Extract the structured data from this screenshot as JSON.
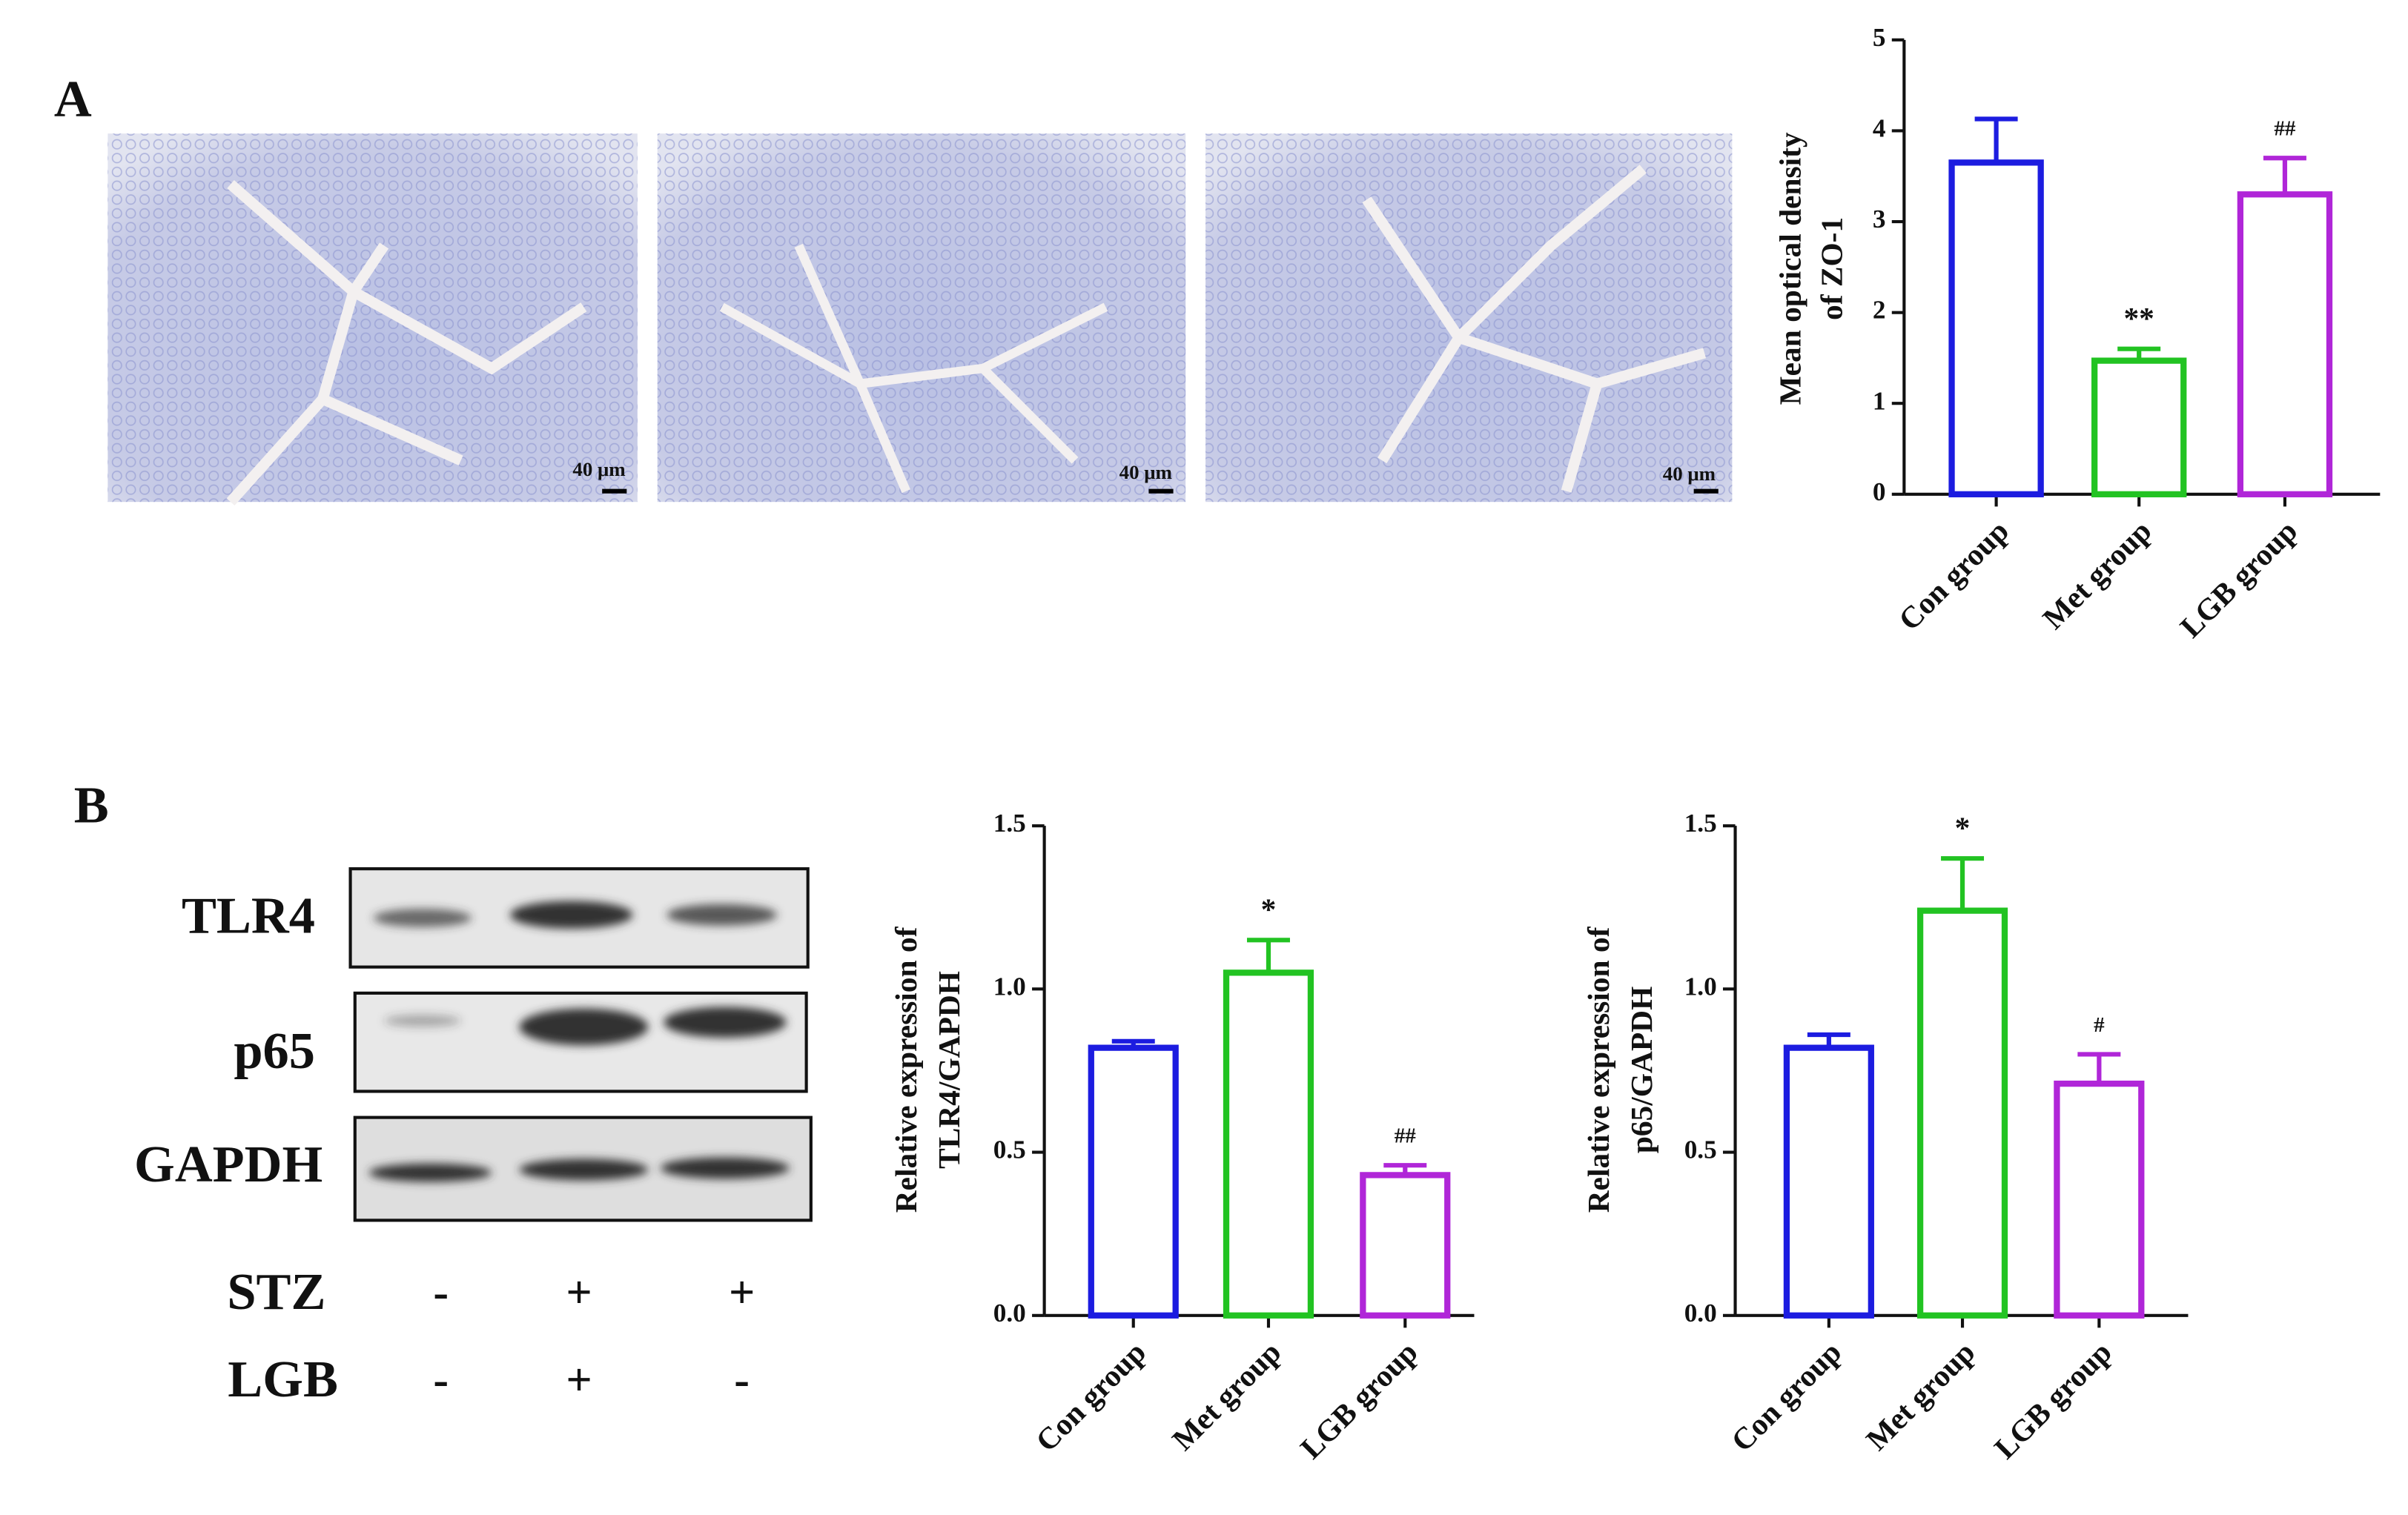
{
  "panels": {
    "labels": [
      "A",
      "B"
    ]
  },
  "micrographs": {
    "scale_labels": [
      "40 μm",
      "40 μm",
      "40 μm"
    ]
  },
  "blot": {
    "bands": [
      "TLR4",
      "p65",
      "GAPDH"
    ],
    "treatments": [
      {
        "name": "STZ",
        "signs": [
          "-",
          "+",
          "+"
        ]
      },
      {
        "name": "LGB",
        "signs": [
          "-",
          "+",
          "-"
        ]
      }
    ]
  },
  "chart_data": [
    {
      "type": "bar",
      "ylabel": [
        "Mean optical density",
        "of ZO-1"
      ],
      "categories": [
        "Con group",
        "Met group",
        "LGB group"
      ],
      "values": [
        3.65,
        1.47,
        3.3
      ],
      "errors": [
        0.48,
        0.13,
        0.4
      ],
      "annotations": [
        null,
        "**",
        "##"
      ],
      "colors": [
        "#1c1ce0",
        "#22c322",
        "#b026d8"
      ],
      "ylim": [
        0,
        5
      ],
      "yticks": [
        0,
        1,
        2,
        3,
        4,
        5
      ]
    },
    {
      "type": "bar",
      "ylabel": [
        "Relative expression of",
        "TLR4/GAPDH"
      ],
      "categories": [
        "Con group",
        "Met group",
        "LGB group"
      ],
      "values": [
        0.82,
        1.05,
        0.43
      ],
      "errors": [
        0.02,
        0.1,
        0.03
      ],
      "annotations": [
        null,
        "*",
        "##"
      ],
      "colors": [
        "#1c1ce0",
        "#22c322",
        "#b026d8"
      ],
      "ylim": [
        0,
        1.5
      ],
      "yticks": [
        {
          "value": 0,
          "label": "0.0"
        },
        0.5,
        {
          "value": 1,
          "label": "1.0"
        },
        1.5
      ]
    },
    {
      "type": "bar",
      "ylabel": [
        "Relative expression of",
        "p65/GAPDH"
      ],
      "categories": [
        "Con group",
        "Met group",
        "LGB group"
      ],
      "values": [
        0.82,
        1.24,
        0.71
      ],
      "errors": [
        0.04,
        0.16,
        0.09
      ],
      "annotations": [
        null,
        "*",
        "#"
      ],
      "colors": [
        "#1c1ce0",
        "#22c322",
        "#b026d8"
      ],
      "ylim": [
        0,
        1.5
      ],
      "yticks": [
        {
          "value": 0,
          "label": "0.0"
        },
        0.5,
        {
          "value": 1,
          "label": "1.0"
        },
        1.5
      ]
    }
  ]
}
